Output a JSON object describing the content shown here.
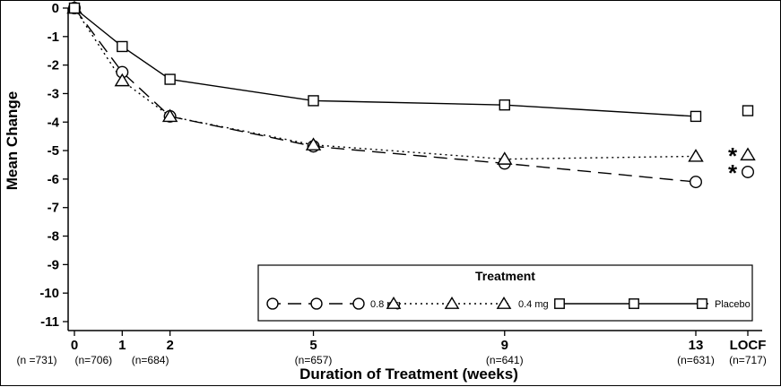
{
  "figure": {
    "background": "#ffffff",
    "frame_color": "#000000"
  },
  "chart_data": {
    "type": "line",
    "title": "",
    "xlabel": "Duration of Treatment (weeks)",
    "ylabel": "Mean Change",
    "ylim": [
      -11,
      0
    ],
    "yticks": [
      0,
      -1,
      -2,
      -3,
      -4,
      -5,
      -6,
      -7,
      -8,
      -9,
      -10,
      -11
    ],
    "x_weeks": [
      0,
      1,
      2,
      5,
      9,
      13
    ],
    "x_tick_labels": [
      "0",
      "1",
      "2",
      "5",
      "9",
      "13",
      "LOCF"
    ],
    "sample_sizes": [
      "(n =731)",
      "(n=706)",
      "(n=684)",
      "(n=657)",
      "(n=641)",
      "(n=631)",
      "(n=717)"
    ],
    "grid": "off",
    "legend_position": "inside-bottom",
    "legend": {
      "title": "Treatment"
    },
    "colors": {
      "line": "#000000",
      "marker_fill": "#ffffff"
    },
    "series": [
      {
        "name": "0.8 mg",
        "marker": "circle",
        "line_style": "dashed",
        "values": [
          0,
          -2.25,
          -3.8,
          -4.85,
          -5.45,
          -6.1
        ],
        "locf_value": -5.75,
        "significance": "*"
      },
      {
        "name": "0.4 mg",
        "marker": "triangle",
        "line_style": "dotted",
        "values": [
          0,
          -2.55,
          -3.8,
          -4.8,
          -5.3,
          -5.2
        ],
        "locf_value": -5.15,
        "significance": "*"
      },
      {
        "name": "Placebo",
        "marker": "square",
        "line_style": "solid",
        "values": [
          0,
          -1.35,
          -2.5,
          -3.25,
          -3.4,
          -3.8
        ],
        "locf_value": -3.6,
        "significance": ""
      }
    ]
  }
}
